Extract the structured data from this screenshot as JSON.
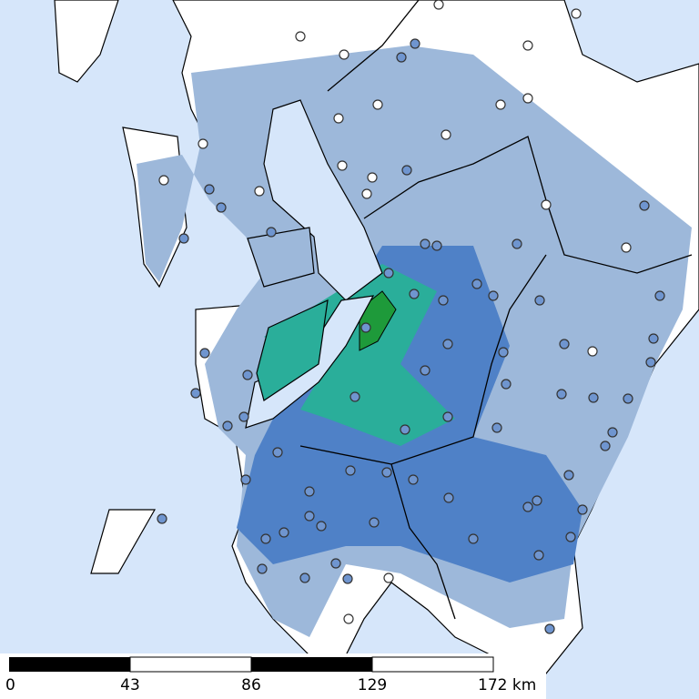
{
  "scale_bar": {
    "labels": [
      "0",
      "43",
      "86",
      "129",
      "172 km"
    ]
  }
}
